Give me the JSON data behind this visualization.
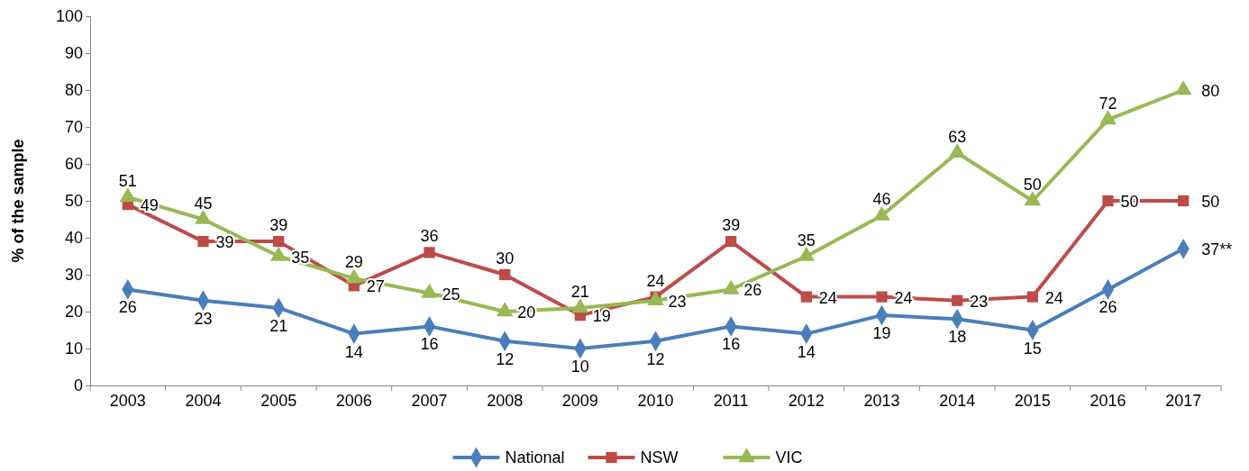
{
  "chart_data": {
    "type": "line",
    "ylabel": "% of the sample",
    "categories": [
      "2003",
      "2004",
      "2005",
      "2006",
      "2007",
      "2008",
      "2009",
      "2010",
      "2011",
      "2012",
      "2013",
      "2014",
      "2015",
      "2016",
      "2017"
    ],
    "ylim": [
      0,
      100
    ],
    "yticks": [
      0,
      10,
      20,
      30,
      40,
      50,
      60,
      70,
      80,
      90,
      100
    ],
    "legend": "bottom",
    "series": [
      {
        "name": "National",
        "color": "#4a7ebb",
        "marker": "diamond",
        "values": [
          26,
          23,
          21,
          14,
          16,
          12,
          10,
          12,
          16,
          14,
          19,
          18,
          15,
          26,
          37
        ],
        "value_labels": [
          "26",
          "23",
          "21",
          "14",
          "16",
          "12",
          "10",
          "12",
          "16",
          "14",
          "19",
          "18",
          "15",
          "26",
          "37**"
        ]
      },
      {
        "name": "NSW",
        "color": "#be4b48",
        "marker": "square",
        "values": [
          49,
          39,
          39,
          27,
          36,
          30,
          19,
          24,
          39,
          24,
          24,
          23,
          24,
          50,
          50
        ],
        "value_labels": [
          "49",
          "39",
          "39",
          "27",
          "36",
          "30",
          "19",
          "24",
          "39",
          "24",
          "24",
          "23",
          "24",
          "50",
          "50"
        ]
      },
      {
        "name": "VIC",
        "color": "#98b954",
        "marker": "triangle",
        "values": [
          51,
          45,
          35,
          29,
          25,
          20,
          21,
          23,
          26,
          35,
          46,
          63,
          50,
          72,
          80
        ],
        "value_labels": [
          "51",
          "45",
          "35",
          "29",
          "25",
          "20",
          "21",
          "23",
          "26",
          "35",
          "46",
          "63",
          "50",
          "72",
          "80"
        ]
      }
    ]
  }
}
